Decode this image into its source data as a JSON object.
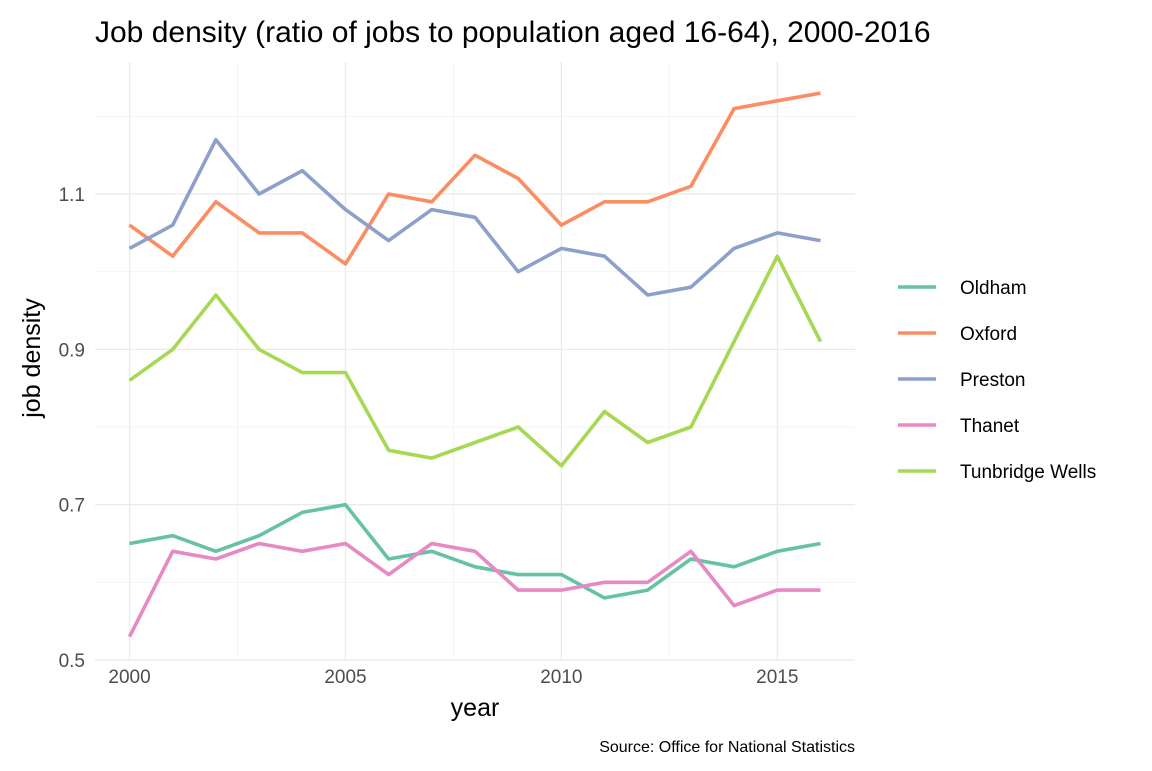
{
  "chart_data": {
    "type": "line",
    "title": "Job density (ratio of jobs to population aged 16-64), 2000-2016",
    "xlabel": "year",
    "ylabel": "job density",
    "caption": "Source: Office for National Statistics",
    "x": [
      2000,
      2001,
      2002,
      2003,
      2004,
      2005,
      2006,
      2007,
      2008,
      2009,
      2010,
      2011,
      2012,
      2013,
      2014,
      2015,
      2016
    ],
    "xlim": [
      1999.2,
      2016.8
    ],
    "ylim": [
      0.5,
      1.27
    ],
    "x_ticks": [
      2000,
      2005,
      2010,
      2015
    ],
    "x_tick_labels": [
      "2000",
      "2005",
      "2010",
      "2015"
    ],
    "y_ticks": [
      0.5,
      0.7,
      0.9,
      1.1
    ],
    "y_tick_labels": [
      "0.5",
      "0.7",
      "0.9",
      "1.1"
    ],
    "grid": true,
    "legend_position": "right",
    "series": [
      {
        "name": "Oldham",
        "color": "#66c2a5",
        "values": [
          0.65,
          0.66,
          0.64,
          0.66,
          0.69,
          0.7,
          0.63,
          0.64,
          0.62,
          0.61,
          0.61,
          0.58,
          0.59,
          0.63,
          0.62,
          0.64,
          0.65
        ]
      },
      {
        "name": "Oxford",
        "color": "#fc8d62",
        "values": [
          1.06,
          1.02,
          1.09,
          1.05,
          1.05,
          1.01,
          1.1,
          1.09,
          1.15,
          1.12,
          1.06,
          1.09,
          1.09,
          1.11,
          1.21,
          1.22,
          1.23
        ]
      },
      {
        "name": "Preston",
        "color": "#8da0cb",
        "values": [
          1.03,
          1.06,
          1.17,
          1.1,
          1.13,
          1.08,
          1.04,
          1.08,
          1.07,
          1.0,
          1.03,
          1.02,
          0.97,
          0.98,
          1.03,
          1.05,
          1.04
        ]
      },
      {
        "name": "Thanet",
        "color": "#e78ac3",
        "values": [
          0.53,
          0.64,
          0.63,
          0.65,
          0.64,
          0.65,
          0.61,
          0.65,
          0.64,
          0.59,
          0.59,
          0.6,
          0.6,
          0.64,
          0.57,
          0.59,
          0.59
        ]
      },
      {
        "name": "Tunbridge Wells",
        "color": "#a6d854",
        "values": [
          0.86,
          0.9,
          0.97,
          0.9,
          0.87,
          0.87,
          0.77,
          0.76,
          0.78,
          0.8,
          0.75,
          0.82,
          0.78,
          0.8,
          0.91,
          1.02,
          0.91
        ]
      }
    ]
  }
}
